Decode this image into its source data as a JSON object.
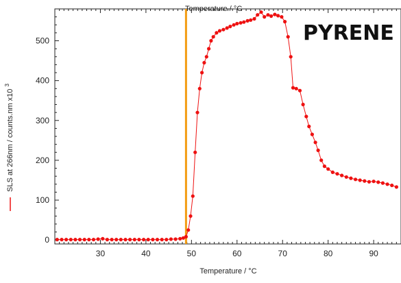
{
  "chart_data": {
    "type": "scatter",
    "annotation": "PYRENE",
    "xlabel": "Temperature / °C",
    "top_xlabel": "Temperature / °C",
    "ylabel": "SLS at 266nm / counts.nm x10",
    "ylabel_superscript": "3",
    "xlim": [
      20,
      96
    ],
    "ylim": [
      -10,
      580
    ],
    "x_ticks": [
      30,
      40,
      50,
      60,
      70,
      80,
      90
    ],
    "y_ticks": [
      0,
      100,
      200,
      300,
      400,
      500
    ],
    "vertical_marker": {
      "x": 48.8,
      "color": "#f39c12"
    },
    "series": [
      {
        "color": "#ee1111",
        "points": [
          [
            20.5,
            1
          ],
          [
            21.5,
            1
          ],
          [
            22.5,
            1
          ],
          [
            23.5,
            1
          ],
          [
            24.5,
            1
          ],
          [
            25.5,
            1
          ],
          [
            26.5,
            1
          ],
          [
            27.5,
            1
          ],
          [
            28.5,
            1
          ],
          [
            29.5,
            2
          ],
          [
            30.5,
            3
          ],
          [
            31.5,
            1
          ],
          [
            32.5,
            1
          ],
          [
            33.5,
            1
          ],
          [
            34.5,
            1
          ],
          [
            35.5,
            1
          ],
          [
            36.5,
            1
          ],
          [
            37.5,
            1
          ],
          [
            38.5,
            1
          ],
          [
            39.5,
            1
          ],
          [
            40.5,
            1
          ],
          [
            41.5,
            1
          ],
          [
            42.5,
            1
          ],
          [
            43.5,
            1
          ],
          [
            44.5,
            1
          ],
          [
            45.5,
            2
          ],
          [
            46.5,
            2
          ],
          [
            47.5,
            3
          ],
          [
            48.2,
            5
          ],
          [
            48.8,
            8
          ],
          [
            49.3,
            25
          ],
          [
            49.8,
            60
          ],
          [
            50.3,
            110
          ],
          [
            50.8,
            220
          ],
          [
            51.3,
            320
          ],
          [
            51.8,
            380
          ],
          [
            52.3,
            420
          ],
          [
            52.8,
            445
          ],
          [
            53.3,
            460
          ],
          [
            53.8,
            480
          ],
          [
            54.3,
            500
          ],
          [
            54.8,
            510
          ],
          [
            55.5,
            520
          ],
          [
            56.2,
            525
          ],
          [
            57,
            528
          ],
          [
            57.8,
            532
          ],
          [
            58.5,
            536
          ],
          [
            59.3,
            540
          ],
          [
            60,
            543
          ],
          [
            60.8,
            545
          ],
          [
            61.5,
            547
          ],
          [
            62.3,
            550
          ],
          [
            63,
            552
          ],
          [
            63.8,
            555
          ],
          [
            64.5,
            565
          ],
          [
            65.3,
            572
          ],
          [
            66,
            560
          ],
          [
            66.8,
            565
          ],
          [
            67.5,
            562
          ],
          [
            68.3,
            566
          ],
          [
            69,
            563
          ],
          [
            69.8,
            560
          ],
          [
            70.5,
            548
          ],
          [
            71.2,
            510
          ],
          [
            71.8,
            460
          ],
          [
            72.3,
            382
          ],
          [
            73,
            380
          ],
          [
            73.8,
            375
          ],
          [
            74.5,
            340
          ],
          [
            75.2,
            310
          ],
          [
            75.8,
            285
          ],
          [
            76.5,
            265
          ],
          [
            77.2,
            245
          ],
          [
            77.8,
            225
          ],
          [
            78.5,
            200
          ],
          [
            79.2,
            185
          ],
          [
            80,
            178
          ],
          [
            81,
            170
          ],
          [
            82,
            166
          ],
          [
            83,
            162
          ],
          [
            84,
            158
          ],
          [
            85,
            155
          ],
          [
            86,
            152
          ],
          [
            87,
            150
          ],
          [
            88,
            148
          ],
          [
            89,
            146
          ],
          [
            90,
            147
          ],
          [
            91,
            145
          ],
          [
            92,
            143
          ],
          [
            93,
            140
          ],
          [
            94,
            137
          ],
          [
            95,
            133
          ]
        ]
      }
    ]
  }
}
